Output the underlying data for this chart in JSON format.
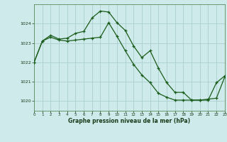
{
  "title": "Graphe pression niveau de la mer (hPa)",
  "background_color": "#ceeaea",
  "grid_color": "#aacfcf",
  "line_color": "#1a5c1a",
  "xlim": [
    0,
    23
  ],
  "ylim": [
    1019.5,
    1025.0
  ],
  "yticks": [
    1020,
    1021,
    1022,
    1023,
    1024
  ],
  "xticks": [
    0,
    1,
    2,
    3,
    4,
    5,
    6,
    7,
    8,
    9,
    10,
    11,
    12,
    13,
    14,
    15,
    16,
    17,
    18,
    19,
    20,
    21,
    22,
    23
  ],
  "series1_x": [
    0,
    1,
    2,
    3,
    4,
    5,
    6,
    7,
    8,
    9,
    10,
    11,
    12,
    13,
    14,
    15,
    16,
    17,
    18,
    19,
    20,
    21,
    22,
    23
  ],
  "series1_y": [
    1022.0,
    1023.1,
    1023.4,
    1023.2,
    1023.25,
    1023.5,
    1023.6,
    1024.3,
    1024.65,
    1024.6,
    1024.05,
    1023.65,
    1022.85,
    1022.25,
    1022.6,
    1021.7,
    1020.95,
    1020.45,
    1020.45,
    1020.05,
    1020.05,
    1020.1,
    1020.15,
    1021.25
  ],
  "series2_x": [
    0,
    1,
    2,
    3,
    4,
    5,
    6,
    7,
    8,
    9,
    10,
    11,
    12,
    13,
    14,
    15,
    16,
    17,
    18,
    19,
    20,
    21,
    22,
    23
  ],
  "series2_y": [
    1022.0,
    1023.1,
    1023.3,
    1023.15,
    1023.1,
    1023.15,
    1023.2,
    1023.25,
    1023.3,
    1024.05,
    1023.35,
    1022.6,
    1021.9,
    1021.35,
    1020.95,
    1020.4,
    1020.2,
    1020.05,
    1020.05,
    1020.05,
    1020.05,
    1020.05,
    1020.95,
    1021.3
  ]
}
